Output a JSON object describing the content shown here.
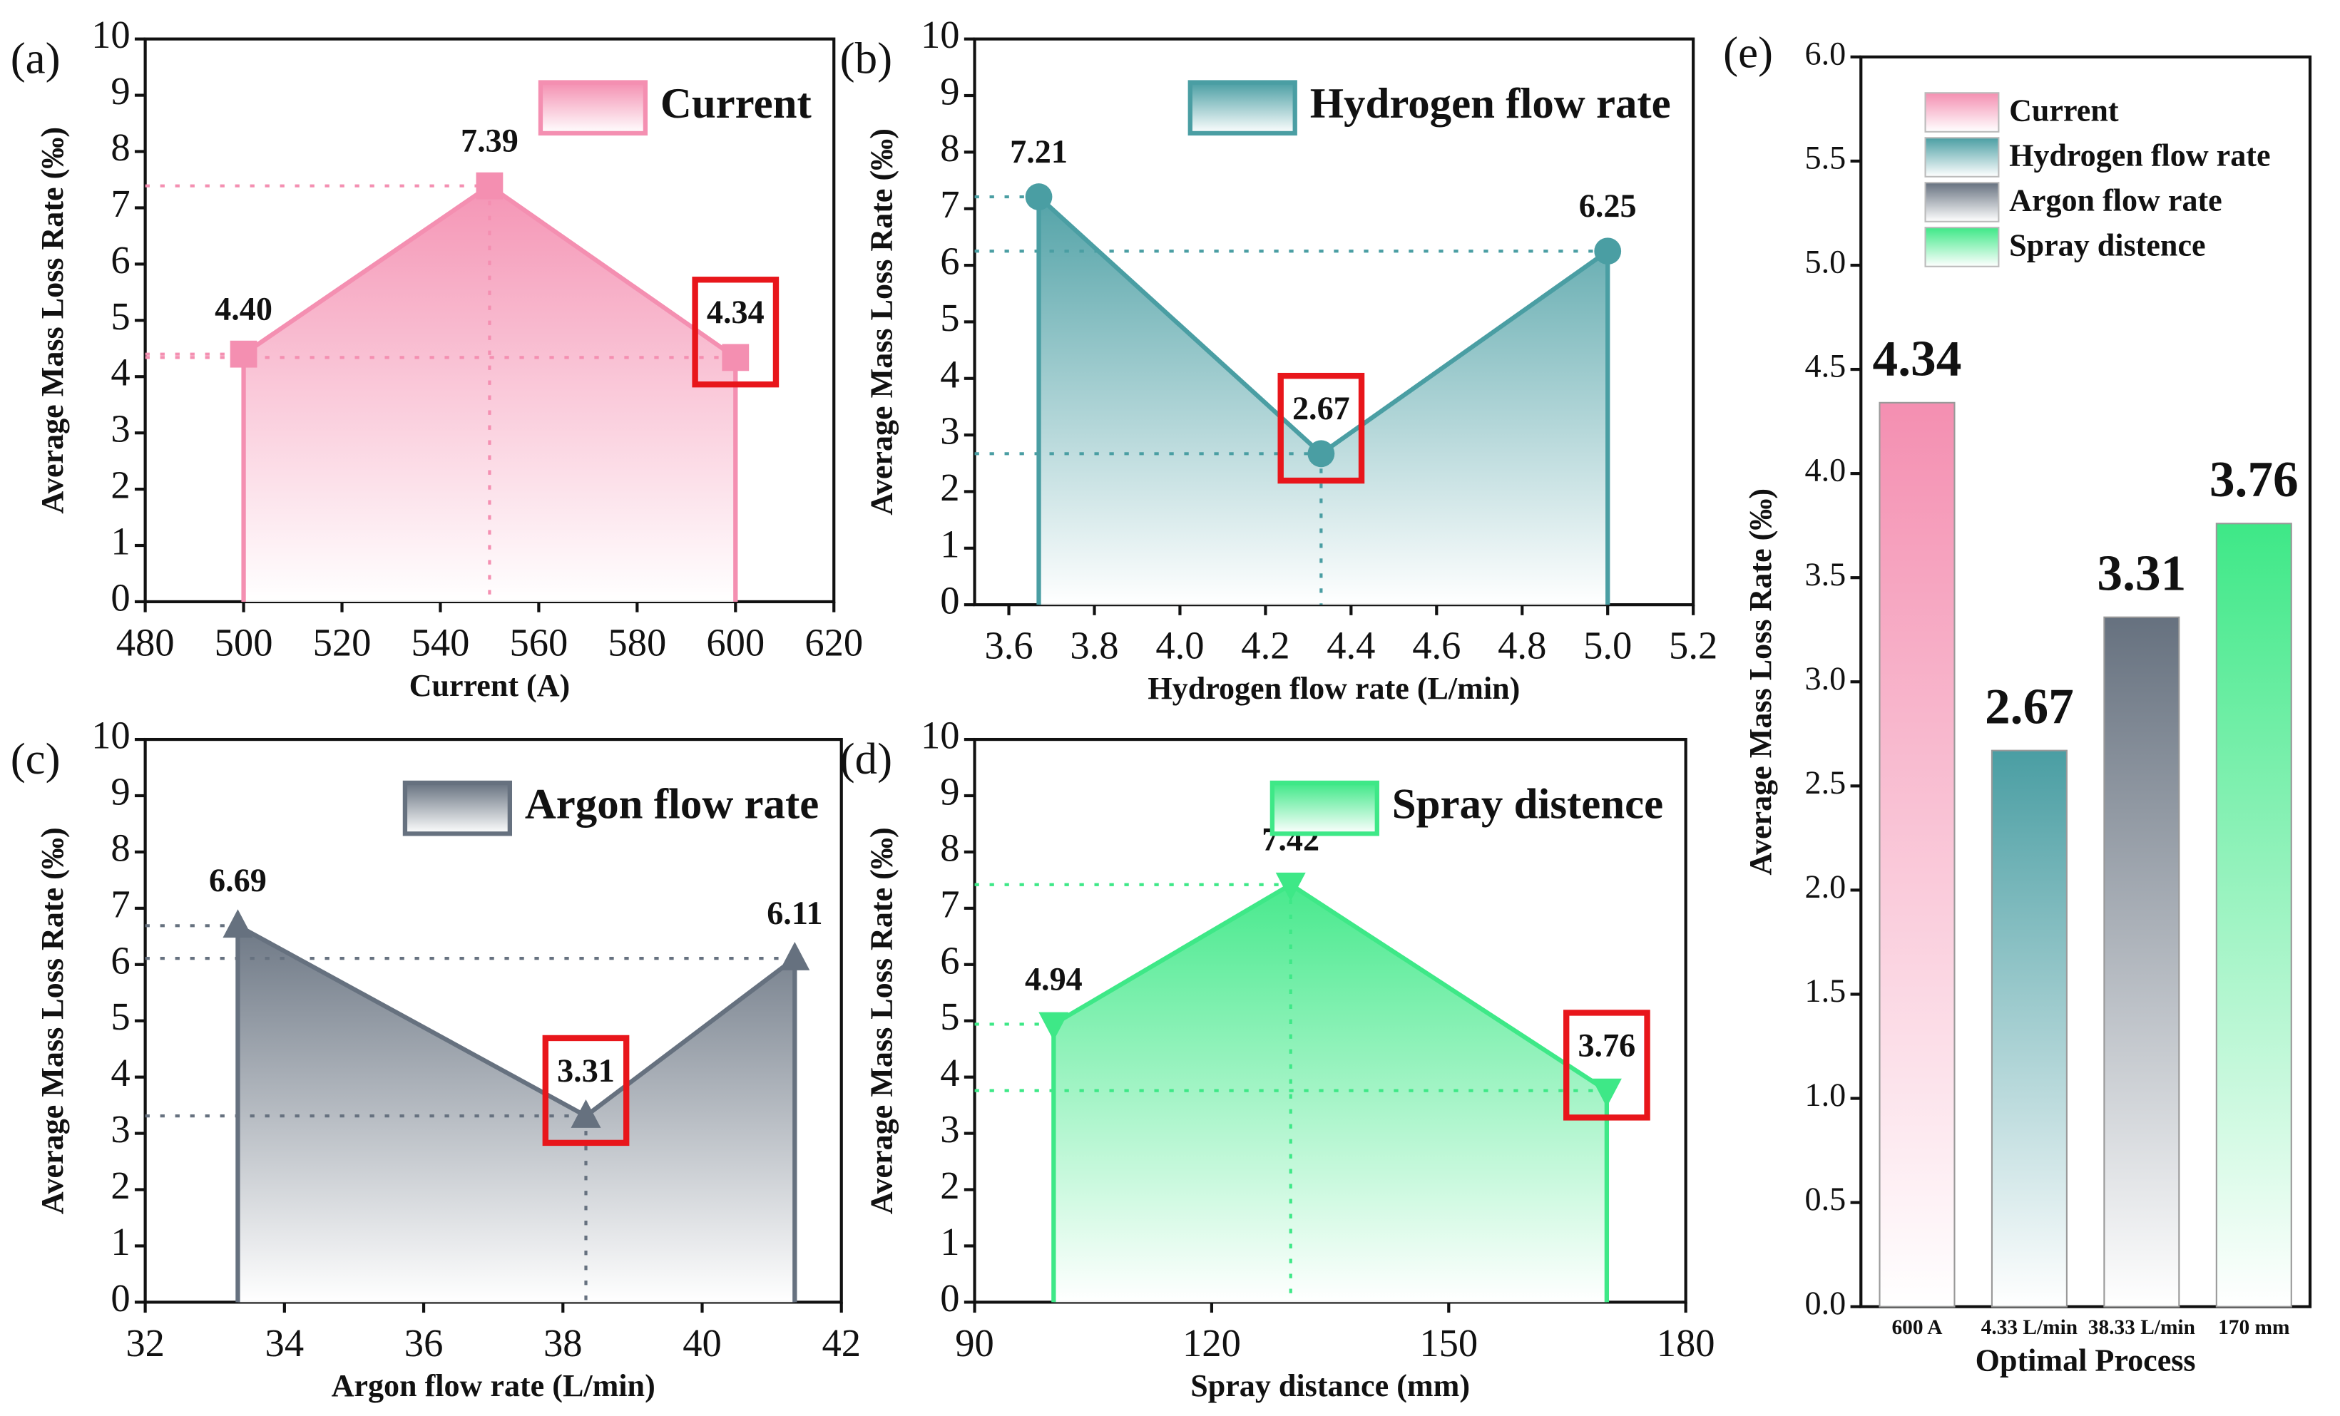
{
  "chart_data": [
    {
      "type": "line",
      "panel_label": "(a)",
      "xlabel": "Current (A)",
      "ylabel": "Average Mass Loss Rate (‰)",
      "x": [
        500,
        550,
        600
      ],
      "xlim": [
        480,
        620
      ],
      "xticks": [
        480,
        500,
        520,
        540,
        560,
        580,
        600,
        620
      ],
      "ylim": [
        0,
        10
      ],
      "yticks": [
        0,
        1,
        2,
        3,
        4,
        5,
        6,
        7,
        8,
        9,
        10
      ],
      "series": [
        {
          "name": "Current",
          "color": "#f48fb1",
          "values": [
            4.4,
            7.39,
            4.34
          ],
          "value_labels": [
            "4.40",
            "7.39",
            "4.34"
          ]
        }
      ],
      "marker": "square",
      "highlight": 2,
      "legend": "upper right"
    },
    {
      "type": "line",
      "panel_label": "(b)",
      "xlabel": "Hydrogen flow rate (L/min)",
      "ylabel": "Average Mass Loss Rate (‰)",
      "x": [
        3.67,
        4.33,
        5.0
      ],
      "xlim": [
        3.52,
        5.2
      ],
      "xticks": [
        3.6,
        3.8,
        {
          "value": 4,
          "label": "4.0"
        },
        4.2,
        4.4,
        4.6,
        4.8,
        {
          "value": 5,
          "label": "5.0"
        },
        5.2
      ],
      "ylim": [
        0,
        10
      ],
      "yticks": [
        0,
        1,
        2,
        3,
        4,
        5,
        6,
        7,
        8,
        9,
        10
      ],
      "series": [
        {
          "name": "Hydrogen flow rate",
          "color": "#4a9ea3",
          "values": [
            7.21,
            2.67,
            6.25
          ]
        }
      ],
      "marker": "circle",
      "highlight": 1,
      "legend": "upper right"
    },
    {
      "type": "line",
      "panel_label": "(c)",
      "xlabel": "Argon flow rate (L/min)",
      "ylabel": "Average Mass Loss Rate (‰)",
      "x": [
        33.33,
        38.33,
        41.33
      ],
      "xlim": [
        32,
        42
      ],
      "xticks": [
        32,
        34,
        36,
        38,
        40,
        42
      ],
      "ylim": [
        0,
        10
      ],
      "yticks": [
        0,
        1,
        2,
        3,
        4,
        5,
        6,
        7,
        8,
        9,
        10
      ],
      "series": [
        {
          "name": "Argon flow rate",
          "color": "#66717f",
          "values": [
            6.69,
            3.31,
            6.11
          ]
        }
      ],
      "marker": "triangle-up",
      "highlight": 1,
      "legend": "upper right"
    },
    {
      "type": "line",
      "panel_label": "(d)",
      "xlabel": "Spray distance (mm)",
      "ylabel": "Average Mass Loss Rate (‰)",
      "x": [
        100,
        130,
        170
      ],
      "xlim": [
        90,
        180
      ],
      "xticks": [
        90,
        120,
        150,
        180
      ],
      "ylim": [
        0,
        10
      ],
      "yticks": [
        0,
        1,
        2,
        3,
        4,
        5,
        6,
        7,
        8,
        9,
        10
      ],
      "series": [
        {
          "name": "Spray distence",
          "color": "#3ee887",
          "values": [
            4.94,
            7.42,
            3.76
          ]
        }
      ],
      "marker": "triangle-down",
      "highlight": 2,
      "legend": "upper right"
    },
    {
      "type": "bar",
      "panel_label": "(e)",
      "xlabel": "Optimal Process",
      "ylabel": "Average Mass Loss Rate (‰)",
      "categories": [
        "600 A",
        "4.33 L/min",
        "38.33 L/min",
        "170 mm"
      ],
      "values": [
        4.34,
        2.67,
        3.31,
        3.76
      ],
      "colors": [
        "#f48fb1",
        "#4a9ea3",
        "#66717f",
        "#3ee887"
      ],
      "legend_labels": [
        "Current",
        "Hydrogen flow rate",
        "Argon flow rate",
        "Spray distence"
      ],
      "ylim": [
        0,
        6
      ],
      "yticks": [
        {
          "value": 0,
          "label": "0.0"
        },
        0.5,
        {
          "value": 1,
          "label": "1.0"
        },
        1.5,
        {
          "value": 2,
          "label": "2.0"
        },
        2.5,
        {
          "value": 3,
          "label": "3.0"
        },
        3.5,
        {
          "value": 4,
          "label": "4.0"
        },
        4.5,
        {
          "value": 5,
          "label": "5.0"
        },
        5.5,
        {
          "value": 6,
          "label": "6.0"
        }
      ],
      "legend": "upper left"
    }
  ]
}
